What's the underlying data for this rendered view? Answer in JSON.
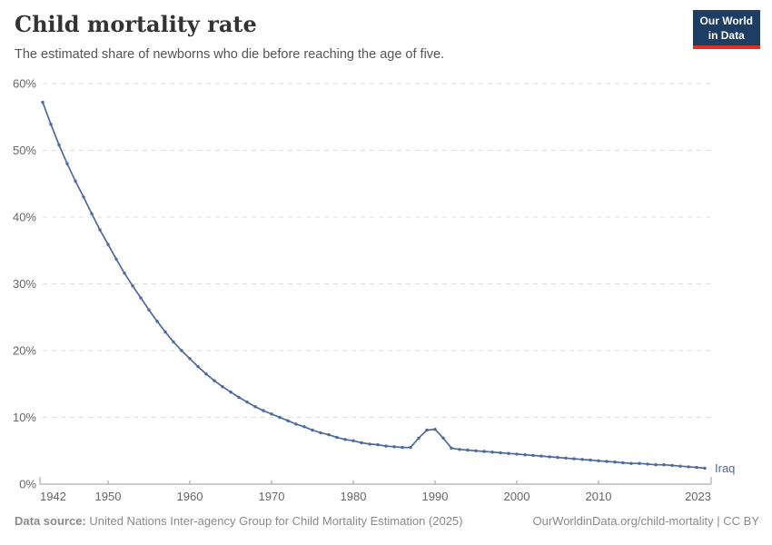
{
  "header": {
    "title": "Child mortality rate",
    "subtitle": "The estimated share of newborns who die before reaching the age of five.",
    "logo_line1": "Our World",
    "logo_line2": "in Data"
  },
  "footer": {
    "source_label": "Data source:",
    "source_text": " United Nations Inter-agency Group for Child Mortality Estimation (2025)",
    "link_text": "OurWorldinData.org/child-mortality | CC BY"
  },
  "colors": {
    "line": "#4C6A9C",
    "grid": "#dddddd",
    "axis": "#999999",
    "tick_text": "#666666",
    "logo_bg": "#1d3d63",
    "logo_red": "#dc3224"
  },
  "chart_data": {
    "type": "line",
    "title": "Child mortality rate",
    "subtitle": "The estimated share of newborns who die before reaching the age of five.",
    "xlabel": "",
    "ylabel": "",
    "grid": "horizontal-dashed",
    "legend_position": "end-of-line-label",
    "xlim": [
      1942,
      2023
    ],
    "ylim": [
      0,
      60
    ],
    "x_ticks": [
      {
        "value": 1942,
        "label": "1942"
      },
      {
        "value": 1950,
        "label": "1950"
      },
      {
        "value": 1960,
        "label": "1960"
      },
      {
        "value": 1970,
        "label": "1970"
      },
      {
        "value": 1980,
        "label": "1980"
      },
      {
        "value": 1990,
        "label": "1990"
      },
      {
        "value": 2000,
        "label": "2000"
      },
      {
        "value": 2010,
        "label": "2010"
      },
      {
        "value": 2023,
        "label": "2023"
      }
    ],
    "y_ticks": [
      {
        "value": 0,
        "label": "0%"
      },
      {
        "value": 10,
        "label": "10%"
      },
      {
        "value": 20,
        "label": "20%"
      },
      {
        "value": 30,
        "label": "30%"
      },
      {
        "value": 40,
        "label": "40%"
      },
      {
        "value": 50,
        "label": "50%"
      },
      {
        "value": 60,
        "label": "60%"
      }
    ],
    "years": [
      1942,
      1943,
      1944,
      1945,
      1946,
      1947,
      1948,
      1949,
      1950,
      1951,
      1952,
      1953,
      1954,
      1955,
      1956,
      1957,
      1958,
      1959,
      1960,
      1961,
      1962,
      1963,
      1964,
      1965,
      1966,
      1967,
      1968,
      1969,
      1970,
      1971,
      1972,
      1973,
      1974,
      1975,
      1976,
      1977,
      1978,
      1979,
      1980,
      1981,
      1982,
      1983,
      1984,
      1985,
      1986,
      1987,
      1988,
      1989,
      1990,
      1991,
      1992,
      1993,
      1994,
      1995,
      1996,
      1997,
      1998,
      1999,
      2000,
      2001,
      2002,
      2003,
      2004,
      2005,
      2006,
      2007,
      2008,
      2009,
      2010,
      2011,
      2012,
      2013,
      2014,
      2015,
      2016,
      2017,
      2018,
      2019,
      2020,
      2021,
      2022,
      2023
    ],
    "series": [
      {
        "name": "Iraq",
        "color": "#4C6A9C",
        "unit": "%",
        "values": [
          57.2,
          53.9,
          50.8,
          48.0,
          45.4,
          43.0,
          40.5,
          38.1,
          35.9,
          33.7,
          31.6,
          29.7,
          27.9,
          26.1,
          24.4,
          22.8,
          21.3,
          20.0,
          18.8,
          17.6,
          16.5,
          15.5,
          14.6,
          13.8,
          13.0,
          12.3,
          11.6,
          11.0,
          10.5,
          10.0,
          9.5,
          9.0,
          8.6,
          8.1,
          7.7,
          7.4,
          7.0,
          6.7,
          6.5,
          6.2,
          6.0,
          5.9,
          5.7,
          5.6,
          5.5,
          5.5,
          6.9,
          8.1,
          8.2,
          6.9,
          5.4,
          5.2,
          5.1,
          5.0,
          4.9,
          4.8,
          4.7,
          4.6,
          4.5,
          4.4,
          4.3,
          4.2,
          4.1,
          4.0,
          3.9,
          3.8,
          3.7,
          3.6,
          3.5,
          3.4,
          3.3,
          3.2,
          3.1,
          3.1,
          3.0,
          2.9,
          2.9,
          2.8,
          2.7,
          2.6,
          2.5,
          2.4
        ]
      }
    ]
  }
}
